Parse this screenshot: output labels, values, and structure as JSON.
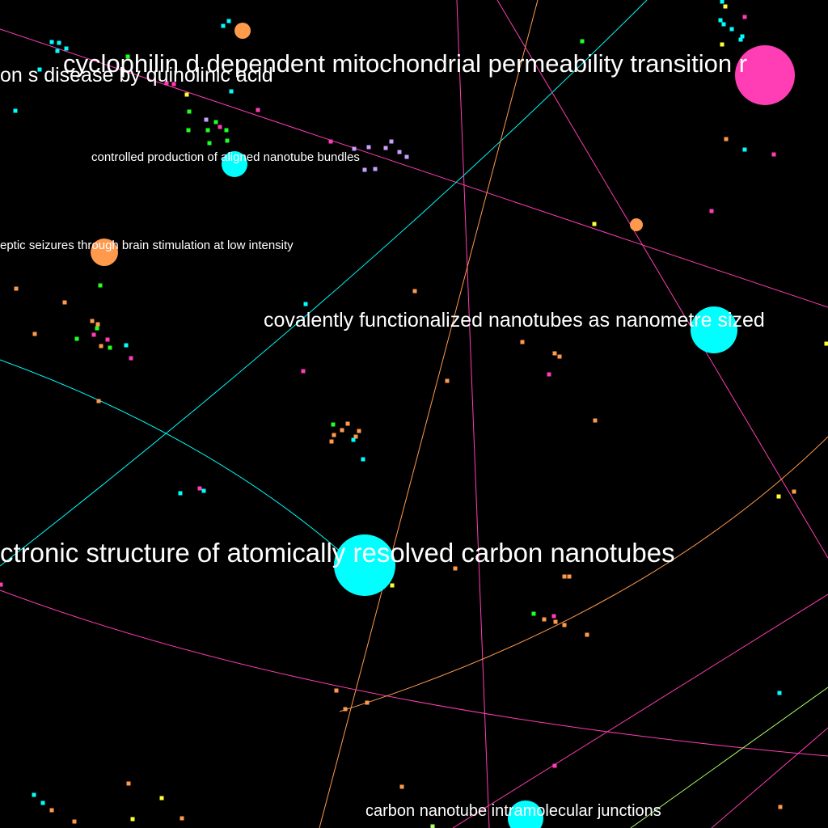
{
  "graph": {
    "background": "#000000",
    "palette": {
      "cyan": "#00ffff",
      "orange": "#ff9a4d",
      "pink": "#ff3db4",
      "green": "#22ff22",
      "yellow": "#ffff33",
      "lavender": "#c8a0ff",
      "peach": "#ffb07a",
      "lightgreen": "#aaff66"
    },
    "labels": [
      {
        "id": "l1",
        "text": "cyclophilin d dependent mitochondrial permeability transition r"
      },
      {
        "id": "l2",
        "text": "on s disease by quinolinic acid"
      },
      {
        "id": "l3",
        "text": "controlled production of aligned nanotube bundles"
      },
      {
        "id": "l4",
        "text": "eptic seizures through brain stimulation at low intensity"
      },
      {
        "id": "l5",
        "text": "covalently functionalized nanotubes as nanometre sized"
      },
      {
        "id": "l6",
        "text": "ctronic structure of atomically resolved carbon nanotubes"
      },
      {
        "id": "l7",
        "text": "carbon nanotube intramolecular junctions"
      }
    ]
  }
}
